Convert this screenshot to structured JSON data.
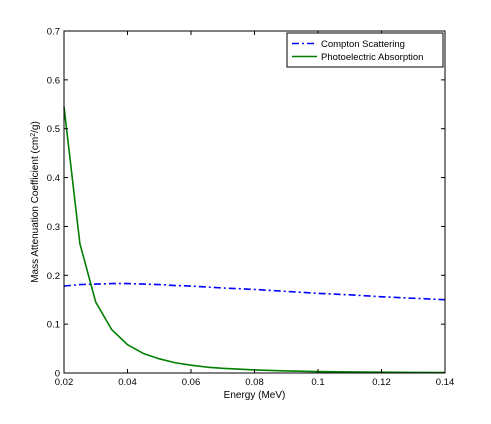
{
  "chart_data": {
    "type": "line",
    "title": "",
    "xlabel": "Energy (MeV)",
    "ylabel_parts": {
      "pre": "Mass Attenuation Coefficient (cm",
      "sup": "2",
      "post": "/g)"
    },
    "xlim": [
      0.02,
      0.14
    ],
    "ylim": [
      0,
      0.7
    ],
    "xticks": [
      "0.02",
      "0.04",
      "0.06",
      "0.08",
      "0.1",
      "0.12",
      "0.14"
    ],
    "yticks": [
      "0",
      "0.1",
      "0.2",
      "0.3",
      "0.4",
      "0.5",
      "0.6",
      "0.7"
    ],
    "grid": false,
    "legend_position": "top-right",
    "series": [
      {
        "name": "Compton Scattering",
        "color": "#0000ff",
        "style": "dash-dot",
        "x": [
          0.02,
          0.025,
          0.03,
          0.035,
          0.04,
          0.045,
          0.05,
          0.055,
          0.06,
          0.07,
          0.08,
          0.09,
          0.1,
          0.11,
          0.12,
          0.13,
          0.14
        ],
        "y": [
          0.178,
          0.181,
          0.182,
          0.183,
          0.183,
          0.182,
          0.181,
          0.179,
          0.178,
          0.174,
          0.171,
          0.167,
          0.163,
          0.16,
          0.156,
          0.153,
          0.15
        ]
      },
      {
        "name": "Photoelectric Absorption",
        "color": "#007f00",
        "style": "solid",
        "x": [
          0.02,
          0.025,
          0.03,
          0.035,
          0.04,
          0.045,
          0.05,
          0.055,
          0.06,
          0.065,
          0.07,
          0.08,
          0.09,
          0.1,
          0.11,
          0.12,
          0.13,
          0.14
        ],
        "y": [
          0.545,
          0.265,
          0.145,
          0.089,
          0.058,
          0.04,
          0.029,
          0.021,
          0.016,
          0.012,
          0.0095,
          0.0062,
          0.0043,
          0.003,
          0.0022,
          0.0016,
          0.0012,
          0.0009
        ]
      }
    ]
  }
}
